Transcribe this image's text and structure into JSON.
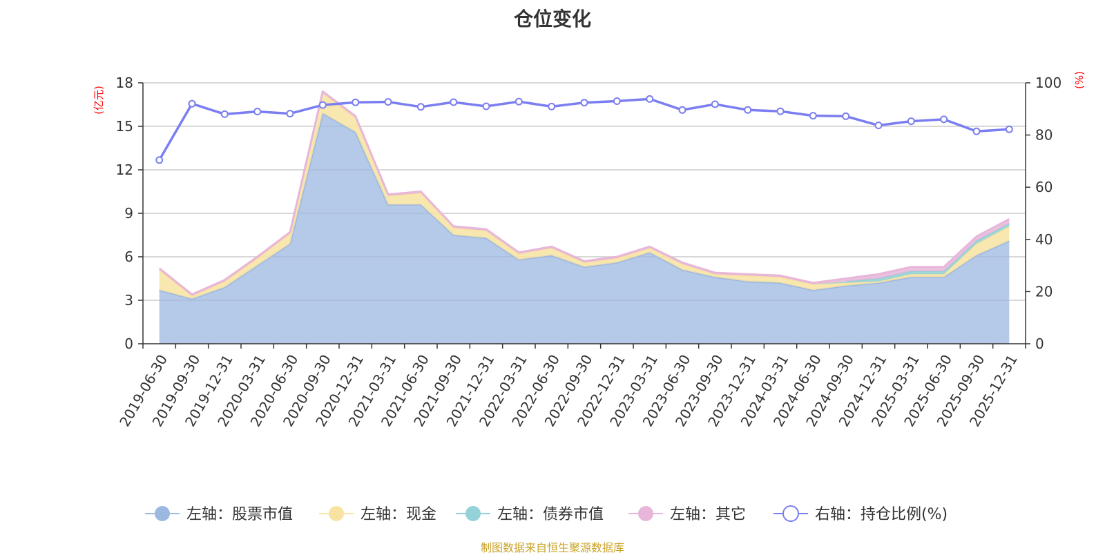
{
  "chart_data": {
    "type": "area",
    "title": "仓位变化",
    "left_axis_unit": "(亿元)",
    "right_axis_unit": "(%)",
    "left_ylim": [
      0,
      18
    ],
    "left_ticks": [
      "0",
      "3",
      "6",
      "9",
      "12",
      "15",
      "18"
    ],
    "right_ylim": [
      0,
      100
    ],
    "right_ticks": [
      "0",
      "20",
      "40",
      "60",
      "80",
      "100"
    ],
    "grid": true,
    "legend_position": "bottom",
    "categories": [
      "2019-06-30",
      "2019-09-30",
      "2019-12-31",
      "2020-03-31",
      "2020-06-30",
      "2020-09-30",
      "2020-12-31",
      "2021-03-31",
      "2021-06-30",
      "2021-09-30",
      "2021-12-31",
      "2022-03-31",
      "2022-06-30",
      "2022-09-30",
      "2022-12-31",
      "2023-03-31",
      "2023-06-30",
      "2023-09-30",
      "2023-12-31",
      "2024-03-31",
      "2024-06-30",
      "2024-09-30",
      "2024-12-31",
      "2025-03-31",
      "2025-06-30",
      "2025-09-30",
      "2025-12-31"
    ],
    "series": [
      {
        "name": "左轴：股票市值",
        "axis": "left",
        "stack": true,
        "color": "#9cb8e0",
        "values": [
          3.7,
          3.1,
          3.9,
          5.4,
          6.9,
          15.9,
          14.6,
          9.6,
          9.6,
          7.5,
          7.3,
          5.8,
          6.1,
          5.3,
          5.6,
          6.3,
          5.1,
          4.6,
          4.3,
          4.2,
          3.7,
          4.0,
          4.2,
          4.6,
          4.6,
          6.1,
          7.1
        ]
      },
      {
        "name": "左轴：现金",
        "axis": "left",
        "stack": true,
        "color": "#f8e3a2",
        "values": [
          1.4,
          0.2,
          0.4,
          0.5,
          0.7,
          1.4,
          1.0,
          0.6,
          0.8,
          0.5,
          0.5,
          0.4,
          0.5,
          0.3,
          0.3,
          0.3,
          0.4,
          0.2,
          0.4,
          0.4,
          0.4,
          0.2,
          0.1,
          0.2,
          0.2,
          0.8,
          1.0
        ]
      },
      {
        "name": "左轴：债券市值",
        "axis": "left",
        "stack": true,
        "color": "#93d2d8",
        "values": [
          0,
          0,
          0,
          0,
          0,
          0,
          0,
          0,
          0,
          0,
          0,
          0,
          0,
          0,
          0,
          0,
          0,
          0,
          0,
          0,
          0,
          0.1,
          0.2,
          0.2,
          0.2,
          0.2,
          0.2
        ]
      },
      {
        "name": "左轴：其它",
        "axis": "left",
        "stack": true,
        "color": "#e7b6d9",
        "values": [
          0.1,
          0.1,
          0.1,
          0.1,
          0.1,
          0.1,
          0.1,
          0.1,
          0.1,
          0.1,
          0.1,
          0.1,
          0.1,
          0.1,
          0.1,
          0.1,
          0.1,
          0.1,
          0.1,
          0.1,
          0.1,
          0.2,
          0.3,
          0.3,
          0.3,
          0.3,
          0.3
        ]
      },
      {
        "name": "右轴：持仓比例(%)",
        "axis": "right",
        "type": "line",
        "color": "#7b7ef0",
        "values": [
          70.4,
          92.0,
          88.0,
          89.0,
          88.2,
          91.5,
          92.5,
          92.7,
          90.8,
          92.6,
          91.0,
          92.8,
          90.9,
          92.4,
          93.0,
          93.8,
          89.6,
          91.8,
          89.6,
          89.1,
          87.4,
          87.2,
          83.7,
          85.3,
          86.0,
          81.4,
          82.2
        ]
      }
    ]
  },
  "source_note": "制图数据来自恒生聚源数据库"
}
